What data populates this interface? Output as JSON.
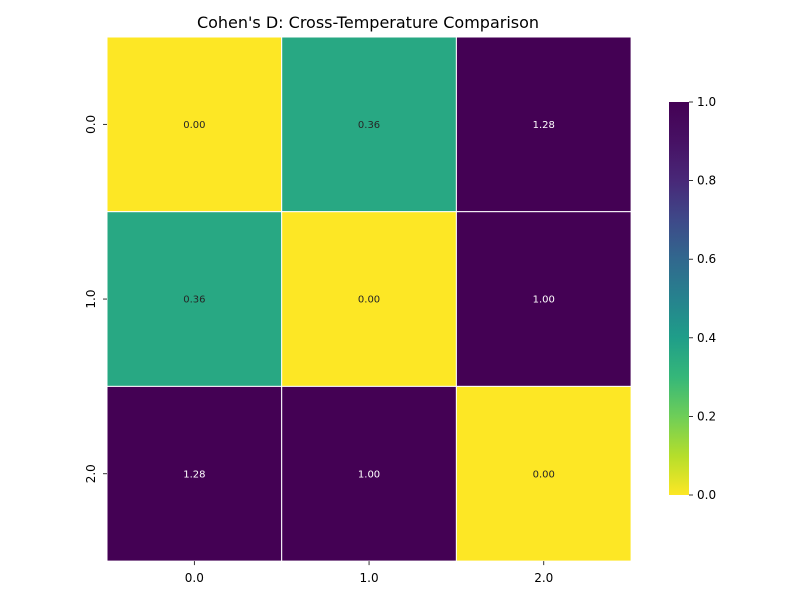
{
  "chart_data": {
    "type": "heatmap",
    "title": "Cohen's D: Cross-Temperature Comparison",
    "xlabel": "",
    "ylabel": "",
    "x_categories": [
      "0.0",
      "1.0",
      "2.0"
    ],
    "y_categories": [
      "0.0",
      "1.0",
      "2.0"
    ],
    "values": [
      [
        0.0,
        0.36,
        1.28
      ],
      [
        0.36,
        0.0,
        1.0
      ],
      [
        1.28,
        1.0,
        0.0
      ]
    ],
    "annotations": [
      [
        "0.00",
        "0.36",
        "1.28"
      ],
      [
        "0.36",
        "0.00",
        "1.00"
      ],
      [
        "1.28",
        "1.00",
        "0.00"
      ]
    ],
    "colormap": "viridis_r",
    "vmin": 0.0,
    "vmax": 1.0,
    "colorbar_ticks": [
      "0.0",
      "0.2",
      "0.4",
      "0.6",
      "0.8",
      "1.0"
    ],
    "grid_line_color": "#ffffff"
  }
}
